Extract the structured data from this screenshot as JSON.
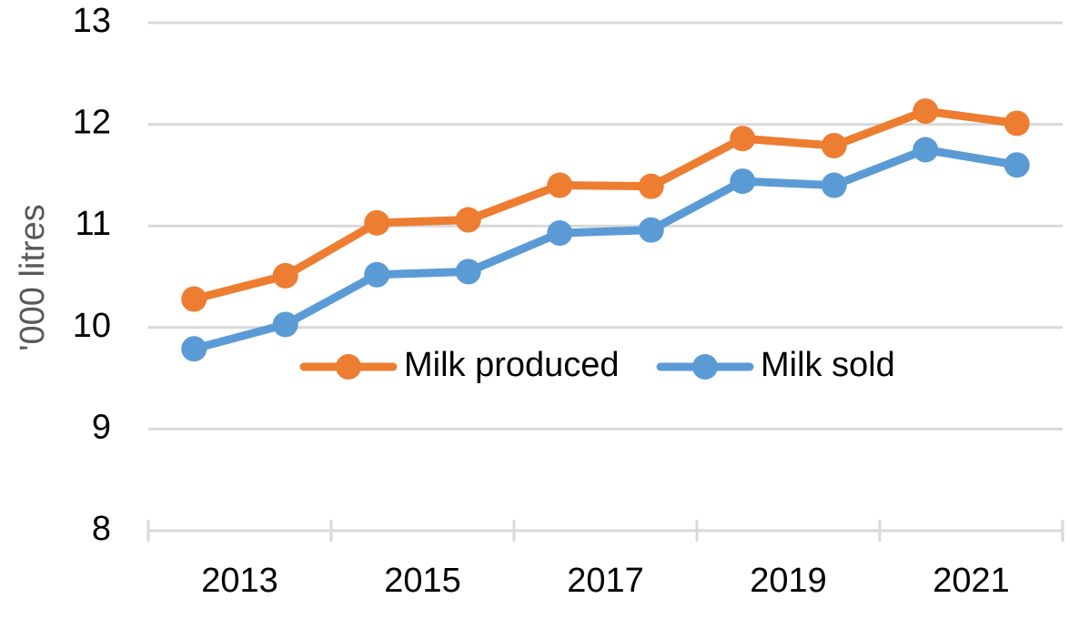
{
  "chart_data": {
    "type": "line",
    "title": "",
    "xlabel": "",
    "ylabel": "'000 litres",
    "ylim": [
      8,
      13
    ],
    "yticks": [
      8,
      9,
      10,
      11,
      12,
      13
    ],
    "x": [
      2013,
      2014,
      2015,
      2016,
      2017,
      2018,
      2019,
      2020,
      2021,
      2022
    ],
    "xtick_labels": [
      "2013",
      "2015",
      "2017",
      "2019",
      "2021"
    ],
    "grid": true,
    "legend_position": "center",
    "series": [
      {
        "name": "Milk produced",
        "color": "#ED7D31",
        "values": [
          10.28,
          10.51,
          11.03,
          11.06,
          11.4,
          11.39,
          11.86,
          11.79,
          12.13,
          12.01
        ]
      },
      {
        "name": "Milk sold",
        "color": "#5B9BD5",
        "values": [
          9.79,
          10.03,
          10.52,
          10.55,
          10.93,
          10.96,
          11.44,
          11.4,
          11.75,
          11.6
        ]
      }
    ]
  }
}
